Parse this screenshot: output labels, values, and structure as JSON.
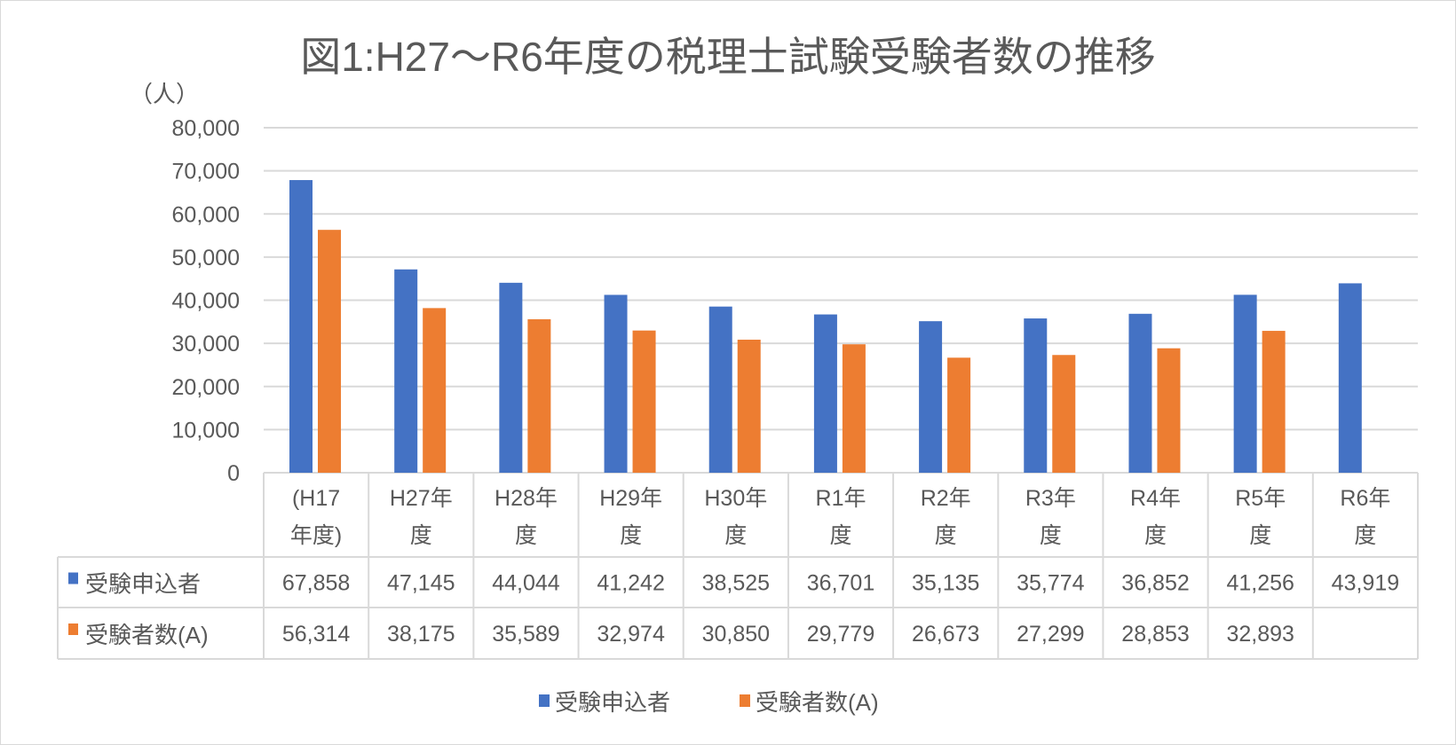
{
  "chart_data": {
    "type": "bar",
    "title": "図1:H27～R6年度の税理士試験受験者数の推移",
    "ylabel": "（人）",
    "ylim": [
      0,
      80000
    ],
    "yticks": [
      "0",
      "10,000",
      "20,000",
      "30,000",
      "40,000",
      "50,000",
      "60,000",
      "70,000",
      "80,000"
    ],
    "grid": true,
    "legend_placement": "bottom",
    "categories": [
      [
        "(H17",
        "年度)"
      ],
      [
        "H27年",
        "度"
      ],
      [
        "H28年",
        "度"
      ],
      [
        "H29年",
        "度"
      ],
      [
        "H30年",
        "度"
      ],
      [
        "R1年",
        "度"
      ],
      [
        "R2年",
        "度"
      ],
      [
        "R3年",
        "度"
      ],
      [
        "R4年",
        "度"
      ],
      [
        "R5年",
        "度"
      ],
      [
        "R6年",
        "度"
      ]
    ],
    "series": [
      {
        "name": "受験申込者",
        "color": "#4472C4",
        "values": [
          67858,
          47145,
          44044,
          41242,
          38525,
          36701,
          35135,
          35774,
          36852,
          41256,
          43919
        ],
        "labels": [
          "67,858",
          "47,145",
          "44,044",
          "41,242",
          "38,525",
          "36,701",
          "35,135",
          "35,774",
          "36,852",
          "41,256",
          "43,919"
        ]
      },
      {
        "name": "受験者数(A)",
        "color": "#ED7D31",
        "values": [
          56314,
          38175,
          35589,
          32974,
          30850,
          29779,
          26673,
          27299,
          28853,
          32893,
          null
        ],
        "labels": [
          "56,314",
          "38,175",
          "35,589",
          "32,974",
          "30,850",
          "29,779",
          "26,673",
          "27,299",
          "28,853",
          "32,893",
          ""
        ]
      }
    ],
    "data_table": true
  }
}
